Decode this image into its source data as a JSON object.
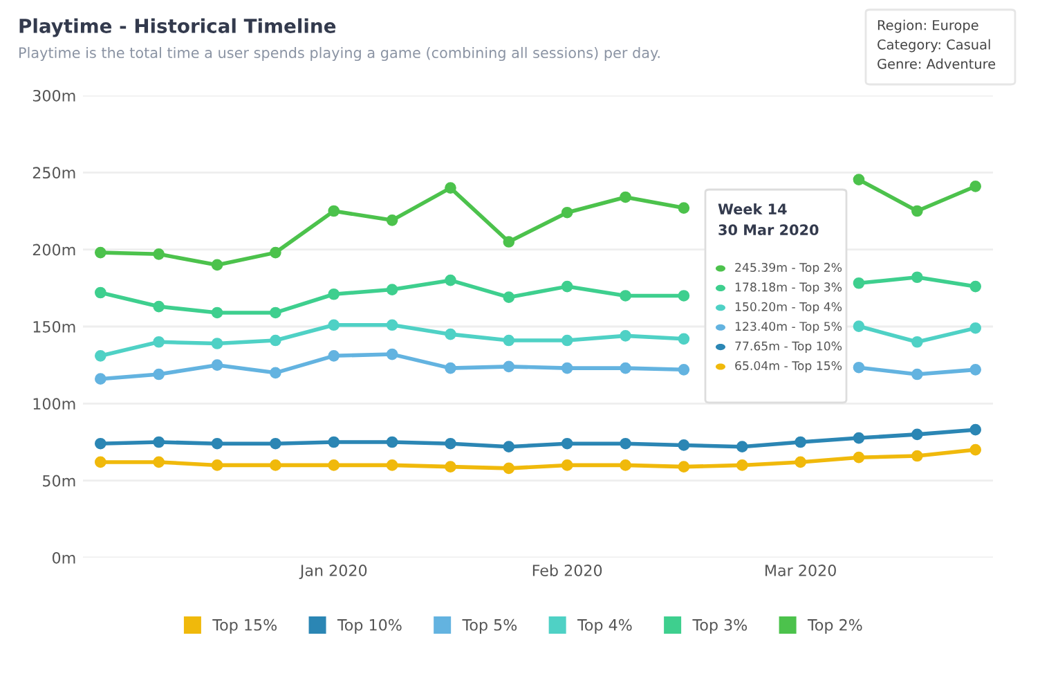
{
  "chart_data": {
    "type": "line",
    "title": "Playtime - Historical Timeline",
    "subtitle": "Playtime is the total time a user spends playing a game (combining all sessions) per day.",
    "categories": [
      null,
      null,
      null,
      null,
      "Jan 2020",
      null,
      null,
      null,
      "Feb 2020",
      null,
      null,
      null,
      "Mar 2020",
      null,
      null,
      null
    ],
    "series": [
      {
        "name": "Top 15%",
        "color": "#f0b90b",
        "values": [
          62,
          62,
          60,
          60,
          60,
          60,
          59,
          58,
          60,
          60,
          59,
          60,
          62,
          65.04,
          66,
          70
        ]
      },
      {
        "name": "Top 10%",
        "color": "#2b86b4",
        "values": [
          74,
          75,
          74,
          74,
          75,
          75,
          74,
          72,
          74,
          74,
          73,
          72,
          75,
          77.65,
          80,
          83
        ]
      },
      {
        "name": "Top 5%",
        "color": "#63b3e0",
        "values": [
          116,
          119,
          125,
          120,
          131,
          132,
          123,
          124,
          123,
          123,
          122,
          null,
          null,
          123.4,
          119,
          122
        ]
      },
      {
        "name": "Top 4%",
        "color": "#4fd1c5",
        "values": [
          131,
          140,
          139,
          141,
          151,
          151,
          145,
          141,
          141,
          144,
          142,
          null,
          null,
          150.2,
          140,
          149
        ]
      },
      {
        "name": "Top 3%",
        "color": "#3ecf8e",
        "values": [
          172,
          163,
          159,
          159,
          171,
          174,
          180,
          169,
          176,
          170,
          170,
          null,
          null,
          178.18,
          182,
          176
        ]
      },
      {
        "name": "Top 2%",
        "color": "#4cc24c",
        "values": [
          198,
          197,
          190,
          198,
          225,
          219,
          240,
          205,
          224,
          234,
          227,
          null,
          null,
          245.39,
          225,
          241
        ]
      }
    ],
    "ylim": [
      0,
      300
    ],
    "yticks": [
      {
        "value": 0,
        "label": "0m"
      },
      {
        "value": 50,
        "label": "50m"
      },
      {
        "value": 100,
        "label": "100m"
      },
      {
        "value": 150,
        "label": "150m"
      },
      {
        "value": 200,
        "label": "200m"
      },
      {
        "value": 250,
        "label": "250m"
      },
      {
        "value": 300,
        "label": "300m"
      }
    ],
    "grid": "y",
    "legend": "bottom",
    "marker": "circle",
    "line_style": "solid",
    "annotations": [
      "Region: Europe",
      "Category: Casual",
      "Genre: Adventure",
      "Week 14",
      "30 Mar 2020",
      "245.39m - Top 2%",
      "178.18m - Top 3%",
      "150.20m - Top 4%",
      "123.40m - Top 5%",
      "77.65m - Top 10%",
      "65.04m - Top 15%"
    ]
  }
}
